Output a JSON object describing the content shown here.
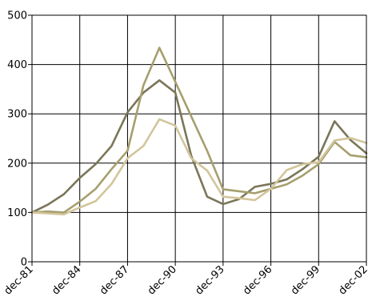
{
  "chart_data": {
    "type": "line",
    "x": [
      "dec-81",
      "dec-82",
      "dec-83",
      "dec-84",
      "dec-85",
      "dec-86",
      "dec-87",
      "dec-88",
      "dec-89",
      "dec-90",
      "dec-91",
      "dec-92",
      "dec-93",
      "dec-94",
      "dec-95",
      "dec-96",
      "dec-97",
      "dec-98",
      "dec-99",
      "dec-00",
      "dec-01",
      "dec-02"
    ],
    "xticks": [
      "dec-81",
      "dec-84",
      "dec-87",
      "dec-90",
      "dec-93",
      "dec-96",
      "dec-99",
      "dec-02"
    ],
    "ylim": [
      0,
      500
    ],
    "yticks": [
      0,
      100,
      200,
      300,
      400,
      500
    ],
    "grid": true,
    "legend": "none",
    "series": [
      {
        "color": "#7a7658",
        "values": [
          100,
          116,
          137,
          170,
          198,
          235,
          303,
          343,
          368,
          343,
          215,
          132,
          117,
          127,
          152,
          158,
          167,
          188,
          213,
          285,
          247,
          220
        ]
      },
      {
        "color": "#a69f6e",
        "values": [
          100,
          102,
          100,
          122,
          148,
          188,
          225,
          358,
          434,
          365,
          295,
          225,
          147,
          143,
          139,
          148,
          157,
          175,
          198,
          243,
          216,
          212
        ]
      },
      {
        "color": "#d2c59b",
        "values": [
          100,
          98,
          96,
          110,
          123,
          158,
          210,
          235,
          289,
          276,
          210,
          185,
          132,
          129,
          125,
          148,
          186,
          198,
          202,
          246,
          251,
          241
        ]
      }
    ]
  }
}
